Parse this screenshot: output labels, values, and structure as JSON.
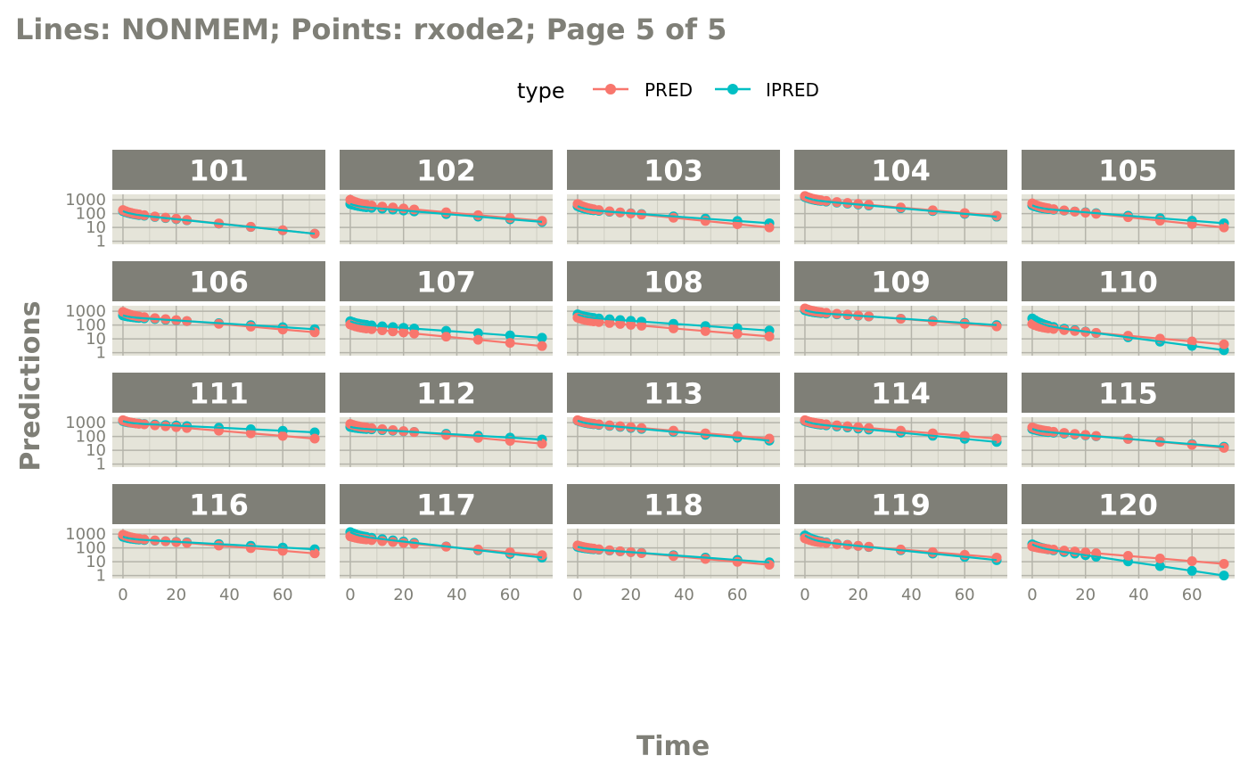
{
  "chart_data": {
    "type": "line",
    "title": "Lines: NONMEM; Points: rxode2; Page 5 of 5",
    "xlabel": "Time",
    "ylabel": "Predictions",
    "y_scale": "log10",
    "ylim": [
      1,
      1000
    ],
    "xlim": [
      0,
      72
    ],
    "x_ticks": [
      0,
      20,
      40,
      60
    ],
    "y_ticks": [
      1,
      10,
      100,
      1000
    ],
    "x_tick_labels": [
      "0",
      "20",
      "40",
      "60"
    ],
    "y_tick_labels": [
      "1",
      "10",
      "100",
      "1000"
    ],
    "grid": true,
    "legend": {
      "title": "type",
      "position": "top",
      "entries": [
        {
          "label": "PRED",
          "color": "#F8766D"
        },
        {
          "label": "IPRED",
          "color": "#00BFC4"
        }
      ]
    },
    "x": [
      0,
      1,
      2,
      3,
      4,
      5,
      6,
      8,
      12,
      16,
      20,
      24,
      36,
      48,
      60,
      72
    ],
    "panels": [
      {
        "id": "101",
        "pred": [
          180,
          110,
          3.5
        ],
        "ipred": [
          150,
          100,
          3.5
        ]
      },
      {
        "id": "102",
        "pred": [
          1000,
          520,
          30
        ],
        "ipred": [
          500,
          350,
          25
        ]
      },
      {
        "id": "103",
        "pred": [
          500,
          250,
          10
        ],
        "ipred": [
          350,
          200,
          20
        ]
      },
      {
        "id": "104",
        "pred": [
          1900,
          1100,
          70
        ],
        "ipred": [
          1600,
          1000,
          60
        ]
      },
      {
        "id": "105",
        "pred": [
          550,
          300,
          10
        ],
        "ipred": [
          400,
          250,
          20
        ]
      },
      {
        "id": "106",
        "pred": [
          900,
          500,
          30
        ],
        "ipred": [
          500,
          380,
          50
        ]
      },
      {
        "id": "107",
        "pred": [
          110,
          70,
          3
        ],
        "ipred": [
          190,
          120,
          12
        ]
      },
      {
        "id": "108",
        "pred": [
          350,
          220,
          15
        ],
        "ipred": [
          600,
          380,
          40
        ]
      },
      {
        "id": "109",
        "pred": [
          1600,
          1000,
          80
        ],
        "ipred": [
          1200,
          850,
          100
        ]
      },
      {
        "id": "110",
        "pred": [
          120,
          70,
          4
        ],
        "ipred": [
          300,
          110,
          1.5
        ]
      },
      {
        "id": "111",
        "pred": [
          1500,
          1000,
          70
        ],
        "ipred": [
          1300,
          950,
          200
        ]
      },
      {
        "id": "112",
        "pred": [
          800,
          550,
          30
        ],
        "ipred": [
          500,
          400,
          60
        ]
      },
      {
        "id": "113",
        "pred": [
          1500,
          1000,
          70
        ],
        "ipred": [
          1400,
          950,
          50
        ]
      },
      {
        "id": "114",
        "pred": [
          1500,
          1000,
          70
        ],
        "ipred": [
          1300,
          900,
          40
        ]
      },
      {
        "id": "115",
        "pred": [
          450,
          300,
          15
        ],
        "ipred": [
          350,
          250,
          18
        ]
      },
      {
        "id": "116",
        "pred": [
          900,
          550,
          40
        ],
        "ipred": [
          650,
          450,
          80
        ]
      },
      {
        "id": "117",
        "pred": [
          700,
          500,
          30
        ],
        "ipred": [
          1400,
          800,
          20
        ]
      },
      {
        "id": "118",
        "pred": [
          150,
          110,
          6
        ],
        "ipred": [
          120,
          95,
          9
        ]
      },
      {
        "id": "119",
        "pred": [
          500,
          300,
          20
        ],
        "ipred": [
          800,
          350,
          13
        ]
      },
      {
        "id": "120",
        "pred": [
          130,
          100,
          7
        ],
        "ipred": [
          180,
          110,
          1
        ]
      }
    ]
  }
}
